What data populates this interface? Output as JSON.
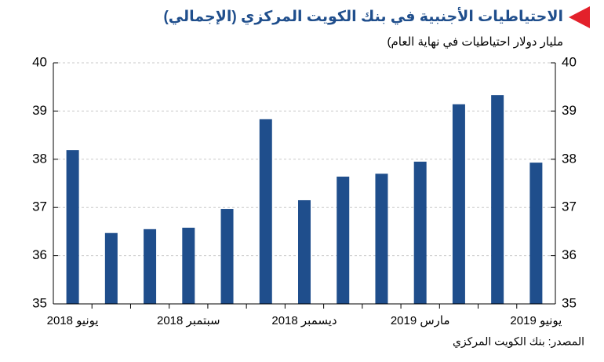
{
  "chart_data": {
    "type": "bar",
    "title": "الاحتياطيات الأجنبية في بنك الكويت المركزي (الإجمالي)",
    "subtitle": "مليار دولار احتياطيات في نهاية العام)",
    "source": "المصدر: بنك الكويت المركزي",
    "categories": [
      "يونيو 2018",
      null,
      null,
      "سبتمبر 2018",
      null,
      null,
      "ديسمبر 2018",
      null,
      null,
      "مارس 2019",
      null,
      null,
      "يونيو 2019"
    ],
    "values": [
      38.19,
      36.47,
      36.55,
      36.58,
      36.97,
      38.83,
      37.15,
      37.64,
      37.7,
      37.95,
      39.14,
      39.33,
      37.93
    ],
    "color": "#1f4e8c",
    "ylim": [
      35,
      40
    ],
    "yticks": [
      35,
      36,
      37,
      38,
      39,
      40
    ],
    "grid": true
  }
}
